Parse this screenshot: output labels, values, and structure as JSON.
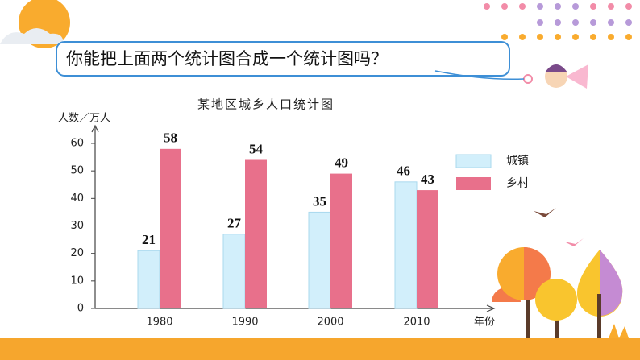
{
  "question": "你能把上面两个统计图合成一个统计图吗？",
  "chart_data": {
    "type": "bar",
    "title": "某地区城乡人口统计图",
    "y_label": "人数／万人",
    "x_label": "年份",
    "categories": [
      "1980",
      "1990",
      "2000",
      "2010"
    ],
    "series": [
      {
        "name": "城镇",
        "color": "#d2effb",
        "values": [
          21,
          27,
          35,
          46
        ]
      },
      {
        "name": "乡村",
        "color": "#e8708b",
        "values": [
          58,
          54,
          49,
          43
        ]
      }
    ],
    "ylim": [
      0,
      65
    ],
    "yticks": [
      0,
      10,
      20,
      30,
      40,
      50,
      60
    ],
    "grid": false,
    "legend": "right"
  }
}
